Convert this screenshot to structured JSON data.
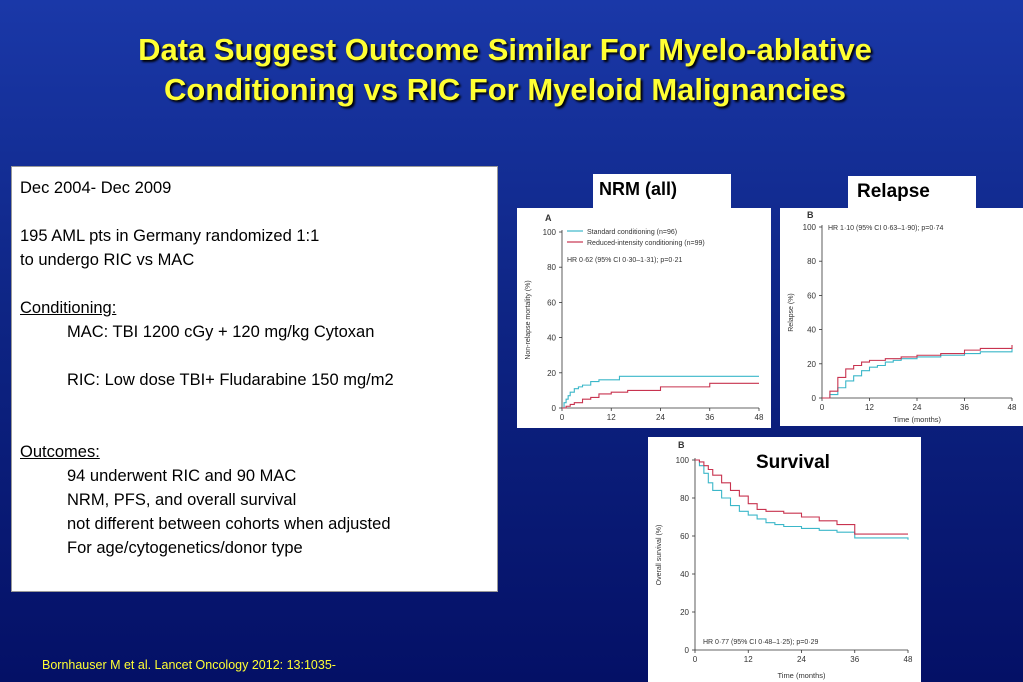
{
  "slide": {
    "title_line1": "Data Suggest Outcome Similar For Myelo-ablative",
    "title_line2": "Conditioning vs RIC For Myeloid Malignancies",
    "citation": "Bornhauser M et al. Lancet Oncology 2012: 13:1035-"
  },
  "textbox": {
    "line1": "Dec 2004- Dec 2009",
    "line2": "195 AML pts in Germany randomized 1:1",
    "line3": "to undergo RIC vs MAC",
    "conditioning_heading": "Conditioning:",
    "mac": "MAC: TBI 1200 cGy + 120 mg/kg Cytoxan",
    "ric": "RIC: Low dose TBI+ Fludarabine 150 mg/m2",
    "outcomes_heading": "Outcomes:",
    "outcome1": "94 underwent RIC and 90 MAC",
    "outcome2": "NRM, PFS, and overall survival",
    "outcome3": "not different between cohorts when adjusted",
    "outcome4": "For age/cytogenetics/donor type"
  },
  "colors": {
    "standard": "#3bb7c9",
    "reduced": "#c8334f"
  },
  "labels": {
    "nrm": "NRM (all)",
    "relapse": "Relapse",
    "survival": "Survival"
  },
  "chart_data": [
    {
      "type": "line",
      "panel_letter": "A",
      "ylabel": "Non-relapse mortality (%)",
      "xlabel": "",
      "xlim": [
        0,
        48
      ],
      "ylim": [
        0,
        100
      ],
      "xticks": [
        0,
        12,
        24,
        36,
        48
      ],
      "yticks": [
        0,
        20,
        40,
        60,
        80,
        100
      ],
      "annotation": "HR 0·62 (95% CI 0·30–1·31); p=0·21",
      "series": [
        {
          "name": "Standard conditioning (n=96)",
          "color": "#3bb7c9",
          "x": [
            0,
            0.5,
            1,
            1.5,
            2,
            3,
            4,
            5,
            7,
            9,
            12,
            14,
            48
          ],
          "y": [
            0,
            3,
            5,
            7,
            9,
            11,
            12,
            13,
            15,
            16,
            16,
            18,
            18
          ]
        },
        {
          "name": "Reduced-intensity conditioning (n=99)",
          "color": "#c8334f",
          "x": [
            0,
            1,
            2,
            3,
            5,
            7,
            9,
            12,
            16,
            20,
            24,
            30,
            36,
            48
          ],
          "y": [
            0,
            1,
            2,
            3,
            5,
            6,
            8,
            9,
            10,
            10,
            12,
            12,
            14,
            14
          ]
        }
      ]
    },
    {
      "type": "line",
      "panel_letter": "B",
      "ylabel": "Relapse (%)",
      "xlabel": "Time (months)",
      "xlim": [
        0,
        48
      ],
      "ylim": [
        0,
        100
      ],
      "xticks": [
        0,
        12,
        24,
        36,
        48
      ],
      "yticks": [
        0,
        20,
        40,
        60,
        80,
        100
      ],
      "annotation": "HR 1·10 (95% CI 0·63–1·90); p=0·74",
      "series": [
        {
          "name": "Standard conditioning",
          "color": "#3bb7c9",
          "x": [
            0,
            2,
            4,
            6,
            8,
            10,
            12,
            14,
            16,
            18,
            20,
            24,
            30,
            36,
            40,
            48
          ],
          "y": [
            0,
            2,
            6,
            10,
            13,
            16,
            18,
            19,
            21,
            22,
            23,
            24,
            25,
            26,
            27,
            29
          ]
        },
        {
          "name": "Reduced-intensity conditioning",
          "color": "#c8334f",
          "x": [
            0,
            2,
            4,
            6,
            8,
            10,
            12,
            14,
            16,
            20,
            24,
            30,
            36,
            40,
            48
          ],
          "y": [
            0,
            4,
            12,
            17,
            19,
            21,
            22,
            22,
            23,
            24,
            25,
            26,
            28,
            29,
            31
          ]
        }
      ]
    },
    {
      "type": "line",
      "panel_letter": "B",
      "ylabel": "Overall survival (%)",
      "xlabel": "Time (months)",
      "xlim": [
        0,
        48
      ],
      "ylim": [
        0,
        100
      ],
      "xticks": [
        0,
        12,
        24,
        36,
        48
      ],
      "yticks": [
        0,
        20,
        40,
        60,
        80,
        100
      ],
      "annotation": "HR 0·77 (95% CI 0·48–1·25); p=0·29",
      "series": [
        {
          "name": "Standard conditioning",
          "color": "#3bb7c9",
          "x": [
            0,
            1,
            2,
            3,
            4,
            6,
            8,
            10,
            12,
            14,
            16,
            18,
            20,
            22,
            24,
            28,
            32,
            36,
            48
          ],
          "y": [
            100,
            97,
            93,
            88,
            84,
            80,
            76,
            73,
            71,
            69,
            67,
            66,
            65,
            65,
            64,
            63,
            62,
            59,
            58
          ]
        },
        {
          "name": "Reduced-intensity conditioning",
          "color": "#c8334f",
          "x": [
            0,
            1,
            2,
            3,
            4,
            6,
            8,
            10,
            12,
            14,
            16,
            20,
            24,
            28,
            32,
            36,
            40,
            48
          ],
          "y": [
            100,
            99,
            97,
            95,
            92,
            88,
            84,
            81,
            77,
            74,
            73,
            72,
            70,
            68,
            66,
            61,
            61,
            61
          ]
        }
      ]
    }
  ]
}
